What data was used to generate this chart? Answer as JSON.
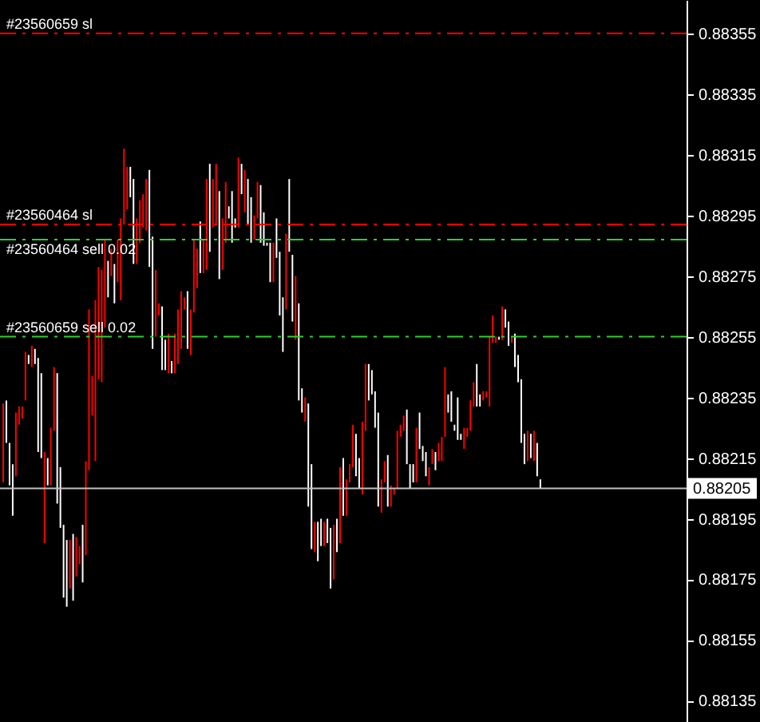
{
  "chart_data": {
    "type": "bar",
    "tick_labels": "y",
    "grid": false,
    "ylim": [
      0.88128,
      0.88366
    ],
    "yticks": [
      0.88355,
      0.88335,
      0.88315,
      0.88295,
      0.88275,
      0.88255,
      0.88235,
      0.88215,
      0.88195,
      0.88175,
      0.88155,
      0.88135
    ],
    "categories": [
      null,
      null,
      null,
      null,
      null,
      null,
      null,
      null,
      null,
      null,
      null,
      null,
      null,
      null,
      null,
      null,
      null,
      null,
      null,
      null,
      null,
      null,
      null,
      null,
      null,
      null,
      null,
      null,
      null,
      null,
      null,
      null,
      null,
      null,
      null,
      null,
      null,
      null,
      null,
      null,
      null,
      null,
      null,
      null,
      null,
      null,
      null,
      null,
      null,
      null,
      null,
      null,
      null,
      null,
      null,
      null,
      null,
      null,
      null,
      null,
      null,
      null,
      null,
      null,
      null,
      null,
      null,
      null,
      null,
      null,
      null,
      null,
      null,
      null,
      null,
      null,
      null,
      null,
      null,
      null,
      null,
      null,
      null,
      null,
      null,
      null,
      null,
      null,
      null,
      null,
      null,
      null,
      null,
      null,
      null,
      null,
      null,
      null,
      null,
      null,
      null,
      null,
      null,
      null,
      null,
      null,
      null,
      null,
      null,
      null,
      null,
      null,
      null,
      null,
      null,
      null,
      null,
      null,
      null,
      null,
      null,
      null,
      null,
      null,
      null,
      null,
      null,
      null,
      null,
      null,
      null,
      null,
      null,
      null,
      null,
      null,
      null,
      null,
      null,
      null,
      null,
      null,
      null,
      null,
      null,
      null,
      null,
      null,
      null,
      null,
      null,
      null,
      null,
      null,
      null,
      null,
      null,
      null,
      null,
      null,
      null,
      null,
      null,
      null,
      null,
      null,
      null,
      null,
      null,
      null,
      null,
      null,
      null,
      null,
      null,
      null,
      null,
      null,
      null,
      null,
      null,
      null,
      null,
      null,
      null,
      null,
      null,
      null,
      null,
      null,
      null,
      null,
      null,
      null,
      null,
      null,
      null,
      null,
      null,
      null,
      null,
      null,
      null,
      null,
      null,
      null,
      null,
      null,
      null,
      null,
      null,
      null,
      null,
      null,
      null
    ],
    "base": [
      0.88207,
      0.8822,
      0.88206,
      0.88196,
      0.88209,
      0.88226,
      0.88228,
      0.88234,
      0.88246,
      0.88245,
      0.88246,
      0.88217,
      0.88215,
      0.88187,
      0.88206,
      0.88206,
      0.88224,
      0.882,
      0.88192,
      0.88169,
      0.88166,
      0.88172,
      0.88168,
      0.88176,
      0.8818,
      0.88174,
      0.88183,
      0.88211,
      0.88229,
      0.88214,
      0.88241,
      0.8824,
      0.88258,
      0.88268,
      0.88275,
      0.88266,
      0.88273,
      0.88267,
      0.88292,
      0.88297,
      0.88301,
      0.88279,
      0.88279,
      0.88286,
      0.88291,
      0.8829,
      0.88278,
      0.88251,
      0.88255,
      0.88262,
      0.88244,
      0.88244,
      0.88243,
      0.88243,
      0.88243,
      0.88246,
      0.88251,
      0.88264,
      0.88251,
      0.88249,
      0.88263,
      0.88271,
      0.88276,
      0.88276,
      0.88277,
      0.88283,
      0.88291,
      0.88292,
      0.88274,
      0.88277,
      0.88286,
      0.88294,
      0.88286,
      0.88291,
      0.88291,
      0.88302,
      0.88296,
      0.88292,
      0.88286,
      0.88287,
      0.88294,
      0.88286,
      0.88285,
      0.88285,
      0.88273,
      0.88273,
      0.88281,
      0.88262,
      0.8825,
      0.88264,
      0.88283,
      0.8826,
      0.88254,
      0.88234,
      0.8823,
      0.88227,
      0.88199,
      0.88185,
      0.88184,
      0.88181,
      0.88186,
      0.88186,
      0.88187,
      0.88172,
      0.88175,
      0.88184,
      0.88187,
      0.88196,
      0.88196,
      0.88207,
      0.88212,
      0.88209,
      0.88205,
      0.88203,
      0.88224,
      0.88234,
      0.88236,
      0.88225,
      0.88199,
      0.88197,
      0.88207,
      0.88199,
      0.88199,
      0.88203,
      0.88205,
      0.88222,
      0.88224,
      0.88213,
      0.88205,
      0.88207,
      0.88207,
      0.88218,
      0.88214,
      0.88209,
      0.88206,
      0.88213,
      0.88211,
      0.88214,
      0.88214,
      0.88222,
      0.8823,
      0.88227,
      0.88224,
      0.88221,
      0.88221,
      0.88218,
      0.88222,
      0.88224,
      0.88232,
      0.88232,
      0.88232,
      0.88234,
      0.88235,
      0.88232,
      0.88253,
      0.88253,
      0.88254,
      0.88254,
      0.88258,
      0.88252,
      0.88253,
      0.88245,
      0.8824,
      0.8822,
      0.88213,
      0.88214,
      0.88215,
      0.88214,
      0.88209,
      0.88205,
      null,
      null,
      null,
      null,
      null,
      null,
      null,
      null,
      null,
      null,
      null,
      null,
      null,
      null,
      null,
      null,
      null,
      null,
      null,
      null,
      null,
      null,
      null,
      null,
      null,
      null,
      null,
      null,
      null,
      null,
      null,
      null,
      null,
      null,
      null,
      null,
      null,
      null,
      null,
      null,
      null,
      null,
      null,
      null,
      null
    ],
    "values": [
      0.00026,
      0.00014,
      0.00014,
      0.00017,
      0.00021,
      6e-05,
      4e-05,
      0.00016,
      3e-05,
      7e-05,
      5e-05,
      0.00031,
      0.00028,
      0.0003,
      9e-05,
      0.00019,
      0.00021,
      0.00043,
      0.0002,
      0.00024,
      0.00022,
      0.00016,
      0.00022,
      0.00013,
      6e-05,
      0.00019,
      0.00031,
      0.00053,
      0.00013,
      0.00053,
      0.00037,
      0.00037,
      0.00029,
      0.00012,
      9e-05,
      0.00013,
      0.00014,
      0.00027,
      0.00025,
      0.00014,
      0.0001,
      0.00028,
      0.00015,
      0.00014,
      0.00011,
      0.00017,
      0.00032,
      0.00037,
      0.00022,
      4e-05,
      0.00021,
      0.0001,
      0.00013,
      4e-05,
      0.00013,
      0.00018,
      0.00019,
      4e-05,
      0.00019,
      0.00015,
      0.00024,
      0.00013,
      0.00017,
      0.00011,
      0.0003,
      0.00029,
      0.00016,
      0.0002,
      0.00029,
      0.00017,
      0.0002,
      4e-05,
      0.00017,
      3e-05,
      0.00023,
      0.0001,
      0.00014,
      0.00015,
      0.00015,
      8e-05,
      0.00012,
      0.00019,
      0.00011,
      1e-05,
      0.00013,
      0.00013,
      0.00013,
      0.00021,
      0.00018,
      0.00025,
      0.00024,
      0.00022,
      0.00021,
      0.00032,
      8e-05,
      8e-05,
      0.00034,
      0.00028,
      0.0001,
      0.00013,
      9e-05,
      8e-05,
      8e-05,
      0.0002,
      0.00018,
      0.00011,
      0.00025,
      0.00019,
      0.00012,
      6e-05,
      0.00014,
      0.00014,
      0.0001,
      0.00024,
      0.00022,
      0.00012,
      8e-05,
      0.00012,
      0.00031,
      0.00011,
      7e-05,
      0.00017,
      7e-05,
      2e-05,
      0.00019,
      4e-05,
      5e-05,
      0.00018,
      8e-05,
      6e-05,
      0.00018,
      0.00012,
      5e-05,
      8e-05,
      6e-05,
      5e-05,
      6e-05,
      6e-05,
      8e-05,
      0.00023,
      6e-05,
      0.0001,
      2e-05,
      0.00014,
      2e-05,
      7e-05,
      3e-05,
      0.0001,
      8e-05,
      0.00014,
      4e-05,
      3e-05,
      2e-05,
      0.00023,
      9e-05,
      2e-05,
      1e-05,
      0.00011,
      6e-05,
      8e-05,
      2e-05,
      0.00011,
      9e-05,
      0.00021,
      0.0001,
      0.0001,
      8e-05,
      0.0001,
      0.00011,
      3e-05,
      null,
      null,
      null,
      null,
      null,
      null,
      null,
      null,
      null,
      null,
      null,
      null,
      null,
      null,
      null,
      null,
      null,
      null,
      null,
      null,
      null,
      null,
      null,
      null,
      null,
      null,
      null,
      null,
      null,
      null,
      null,
      null,
      null,
      null,
      null,
      null,
      null,
      null,
      null,
      null,
      null,
      null,
      null,
      null,
      null
    ],
    "colors": [
      "#ff0000",
      "#ffffff",
      "#ffffff",
      "#ffffff",
      "#ff0000",
      "#ff0000",
      "#ff0000",
      "#ff0000",
      "#ffffff",
      "#ff0000",
      "#ffffff",
      "#ffffff",
      "#ffffff",
      "#ff0000",
      "#ffffff",
      "#ff0000",
      "#ff0000",
      "#ffffff",
      "#ffffff",
      "#ffffff",
      "#ffffff",
      "#ff0000",
      "#ffffff",
      "#ff0000",
      "#ff0000",
      "#ffffff",
      "#ff0000",
      "#ff0000",
      "#ff0000",
      "#ff0000",
      "#ff0000",
      "#ff0000",
      "#ff0000",
      "#ffffff",
      "#ff0000",
      "#ffffff",
      "#ff0000",
      "#ff0000",
      "#ff0000",
      "#ff0000",
      "#ffffff",
      "#ffffff",
      "#ff0000",
      "#ff0000",
      "#ff0000",
      "#ff0000",
      "#ffffff",
      "#ffffff",
      "#ff0000",
      "#ff0000",
      "#ffffff",
      "#ffffff",
      "#ff0000",
      "#ffffff",
      "#ff0000",
      "#ff0000",
      "#ff0000",
      "#ff0000",
      "#ffffff",
      "#ff0000",
      "#ff0000",
      "#ff0000",
      "#ffffff",
      "#ff0000",
      "#ff0000",
      "#ffffff",
      "#ff0000",
      "#ff0000",
      "#ffffff",
      "#ff0000",
      "#ff0000",
      "#ffffff",
      "#ffffff",
      "#ffffff",
      "#ff0000",
      "#ffffff",
      "#ff0000",
      "#ffffff",
      "#ffffff",
      "#ff0000",
      "#ff0000",
      "#ffffff",
      "#ffffff",
      "#ffffff",
      "#ffffff",
      "#ff0000",
      "#ffffff",
      "#ffffff",
      "#ffffff",
      "#ff0000",
      "#ffffff",
      "#ffffff",
      "#ff0000",
      "#ffffff",
      "#ffffff",
      "#ff0000",
      "#ffffff",
      "#ffffff",
      "#ff0000",
      "#ffffff",
      "#ffffff",
      "#ff0000",
      "#ffffff",
      "#ffffff",
      "#ff0000",
      "#ffffff",
      "#ff0000",
      "#ffffff",
      "#ff0000",
      "#ff0000",
      "#ff0000",
      "#ffffff",
      "#ffffff",
      "#ff0000",
      "#ff0000",
      "#ffffff",
      "#ffffff",
      "#ffffff",
      "#ffffff",
      "#ff0000",
      "#ff0000",
      "#ffffff",
      "#ff0000",
      "#ff0000",
      "#ff0000",
      "#ff0000",
      "#ff0000",
      "#ffffff",
      "#ffffff",
      "#ffffff",
      "#ff0000",
      "#ffffff",
      "#ffffff",
      "#ffffff",
      "#ff0000",
      "#ff0000",
      "#ffffff",
      "#ff0000",
      "#ff0000",
      "#ff0000",
      "#ffffff",
      "#ffffff",
      "#ffffff",
      "#ffffff",
      "#ffffff",
      "#ff0000",
      "#ff0000",
      "#ff0000",
      "#ff0000",
      "#ffffff",
      "#ffffff",
      "#ff0000",
      "#ff0000",
      "#ff0000",
      "#ff0000",
      "#ff0000",
      "#ffffff",
      "#ff0000",
      "#ffffff",
      "#ffffff",
      "#ff0000",
      "#ffffff",
      "#ffffff",
      "#ffffff",
      "#ffffff",
      "#ff0000",
      "#ffffff",
      "#ff0000",
      "#ffffff",
      "#ffffff",
      null,
      null,
      null,
      null,
      null,
      null,
      null,
      null,
      null,
      null,
      null,
      null,
      null,
      null,
      null,
      null,
      null,
      null,
      null,
      null,
      null,
      null,
      null,
      null,
      null,
      null,
      null,
      null,
      null,
      null,
      null,
      null,
      null,
      null,
      null,
      null,
      null,
      null,
      null,
      null,
      null,
      null,
      null,
      null,
      null
    ],
    "ref_lines": [
      {
        "axis": "y",
        "value": 0.88355,
        "label": "#23560659 sl",
        "color": "#ff0000",
        "line_style": "dashed"
      },
      {
        "axis": "y",
        "value": 0.88292,
        "label": "#23560464 sl",
        "color": "#ff0000",
        "line_style": "dashed"
      },
      {
        "axis": "y",
        "value": 0.88287,
        "label": "#23560464 sell 0.02",
        "color": "#32cd32",
        "line_style": "dashed"
      },
      {
        "axis": "y",
        "value": 0.88255,
        "label": "#23560659 sell 0.02",
        "color": "#32cd32",
        "line_style": "dashed"
      },
      {
        "axis": "y",
        "value": 0.88205,
        "label": "0.88205",
        "color": "#c0c0c0",
        "line_style": "solid"
      }
    ]
  }
}
